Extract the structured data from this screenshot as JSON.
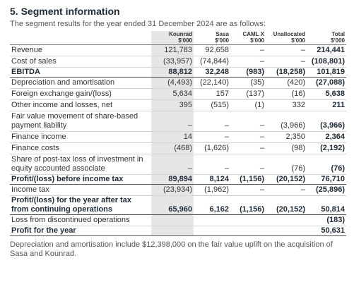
{
  "header": {
    "title": "5. Segment information",
    "subtitle": "The segment results for the year ended 31 December 2024 are as follows:"
  },
  "table": {
    "columns": [
      {
        "name": "Kounrad",
        "unit": "$'000"
      },
      {
        "name": "Sasa",
        "unit": "$'000"
      },
      {
        "name": "CAML X",
        "unit": "$'000"
      },
      {
        "name": "Unallocated",
        "unit": "$'000"
      },
      {
        "name": "Total",
        "unit": "$'000"
      }
    ],
    "rows": [
      {
        "label": "Revenue",
        "cells": [
          "121,783",
          "92,658",
          "–",
          "–",
          "214,441"
        ]
      },
      {
        "label": "Cost of sales",
        "cells": [
          "(33,957)",
          "(74,844)",
          "–",
          "–",
          "(108,801)"
        ]
      },
      {
        "label": "EBITDA",
        "bold": true,
        "cells": [
          "88,812",
          "32,248",
          "(983)",
          "(18,258)",
          "101,819"
        ]
      },
      {
        "label": "Depreciation and amortisation",
        "cells": [
          "(4,493)",
          "(22,140)",
          "(35)",
          "(420)",
          "(27,088)"
        ]
      },
      {
        "label": "Foreign exchange gain/(loss)",
        "cells": [
          "5,634",
          "157",
          "(137)",
          "(16)",
          "5,638"
        ]
      },
      {
        "label": "Other income and losses, net",
        "cells": [
          "395",
          "(515)",
          "(1)",
          "332",
          "211"
        ]
      },
      {
        "label": "Fair value movement of share-based payment liability",
        "cells": [
          "–",
          "–",
          "–",
          "(3,966)",
          "(3,966)"
        ]
      },
      {
        "label": "Finance income",
        "cells": [
          "14",
          "–",
          "–",
          "2,350",
          "2,364"
        ]
      },
      {
        "label": "Finance costs",
        "cells": [
          "(468)",
          "(1,626)",
          "–",
          "(98)",
          "(2,192)"
        ]
      },
      {
        "label": "Share of post-tax loss of investment in equity accounted associate",
        "cells": [
          "–",
          "–",
          "–",
          "(76)",
          "(76)"
        ]
      },
      {
        "label": "Profit/(loss) before income tax",
        "bold": true,
        "cells": [
          "89,894",
          "8,124",
          "(1,156)",
          "(20,152)",
          "76,710"
        ]
      },
      {
        "label": "Income tax",
        "cells": [
          "(23,934)",
          "(1,962)",
          "–",
          "–",
          "(25,896)"
        ]
      },
      {
        "label": "Profit/(loss) for the year after tax from continuing operations",
        "bold": true,
        "cells": [
          "65,960",
          "6,162",
          "(1,156)",
          "(20,152)",
          "50,814"
        ]
      },
      {
        "label": "Loss from discontinued operations",
        "cells": [
          null,
          null,
          null,
          null,
          "(183)"
        ]
      },
      {
        "label": "Profit for the year",
        "bold": true,
        "cells": [
          null,
          null,
          null,
          null,
          "50,631"
        ]
      }
    ]
  },
  "footnote": "Depreciation and amortisation include $12,398,000 on the fair value uplift on the acquisition of Sasa and Kounrad."
}
